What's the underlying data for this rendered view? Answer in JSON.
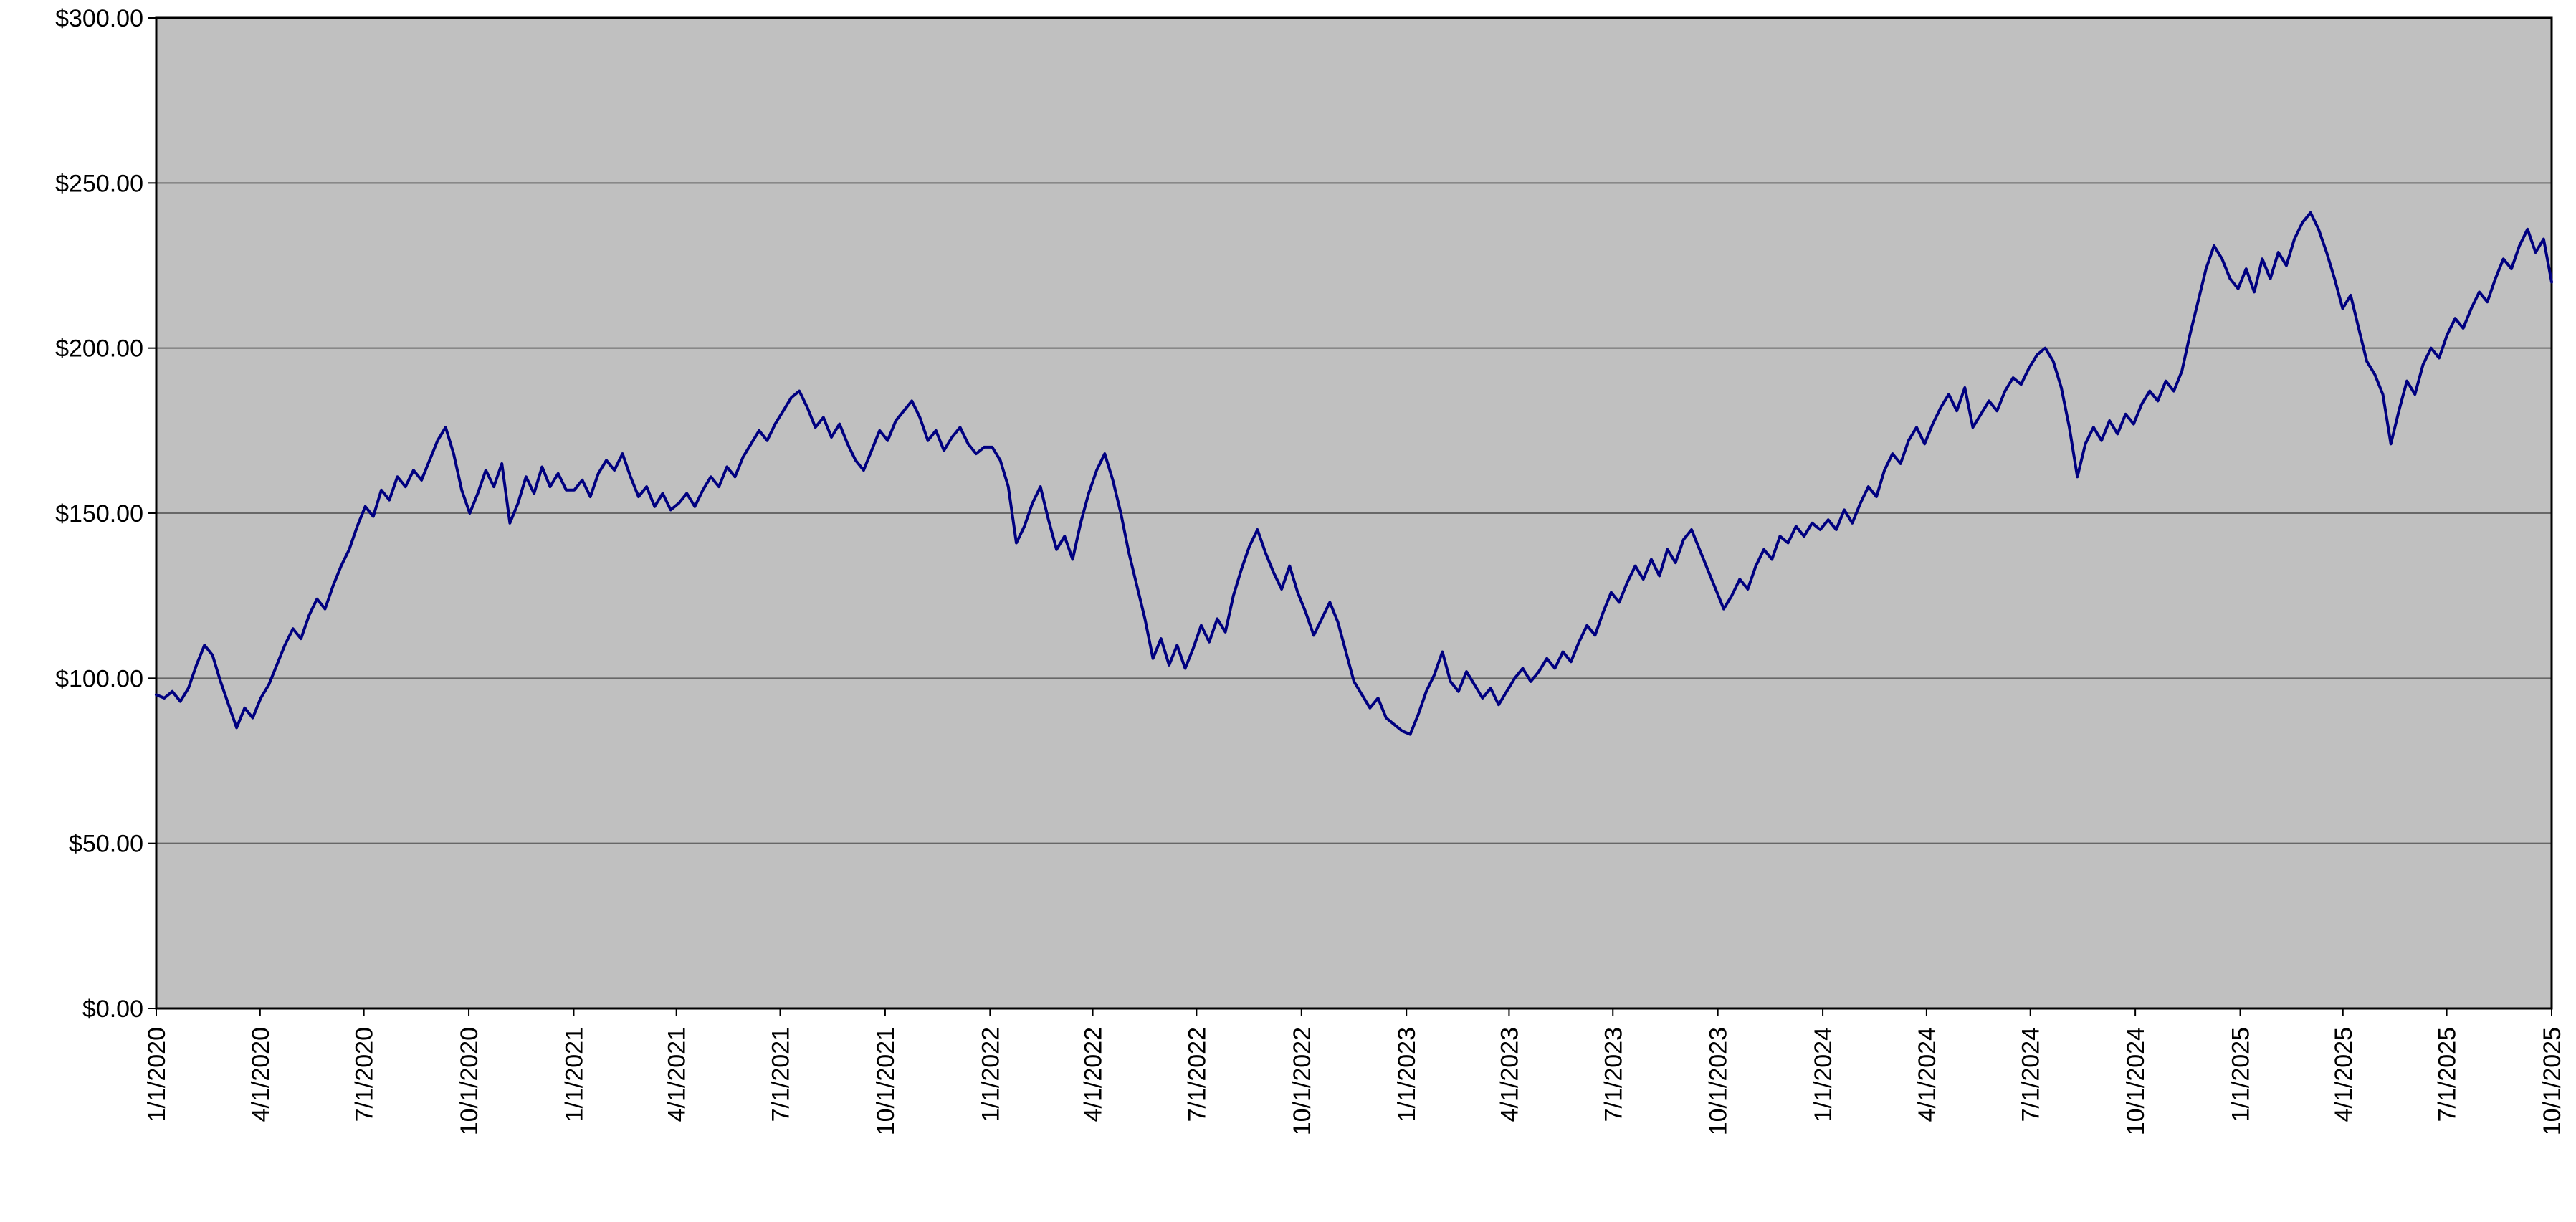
{
  "chart_data": {
    "type": "line",
    "title": "",
    "xlabel": "",
    "ylabel": "",
    "ylim": [
      0,
      300
    ],
    "grid": "horizontal",
    "legend": "none",
    "plot_bg": "#c0c0c0",
    "line_color": "#000080",
    "gridline_color": "#676767",
    "axis_color": "#000000",
    "y_ticks": [
      0,
      50,
      100,
      150,
      200,
      250,
      300
    ],
    "y_tick_labels": [
      "$0.00",
      "$50.00",
      "$100.00",
      "$150.00",
      "$200.00",
      "$250.00",
      "$300.00"
    ],
    "x_tick_labels": [
      "1/1/2020",
      "4/1/2020",
      "7/1/2020",
      "10/1/2020",
      "1/1/2021",
      "4/1/2021",
      "7/1/2021",
      "10/1/2021",
      "1/1/2022",
      "4/1/2022",
      "7/1/2022",
      "10/1/2022",
      "1/1/2023",
      "4/1/2023",
      "7/1/2023",
      "10/1/2023",
      "1/1/2024",
      "4/1/2024",
      "7/1/2024",
      "10/1/2024",
      "1/1/2025",
      "4/1/2025",
      "7/1/2025",
      "10/1/2025"
    ],
    "x_start_date": "1/1/2020",
    "x_end_date": "10/1/2025",
    "sampling": "weekly",
    "values": [
      95,
      94,
      96,
      93,
      97,
      104,
      110,
      107,
      99,
      92,
      85,
      91,
      88,
      94,
      98,
      104,
      110,
      115,
      112,
      119,
      124,
      121,
      128,
      134,
      139,
      146,
      152,
      149,
      157,
      154,
      161,
      158,
      163,
      160,
      166,
      172,
      176,
      168,
      157,
      150,
      156,
      163,
      158,
      165,
      147,
      153,
      161,
      156,
      164,
      158,
      162,
      157,
      157,
      160,
      155,
      162,
      166,
      163,
      168,
      161,
      155,
      158,
      152,
      156,
      151,
      153,
      156,
      152,
      157,
      161,
      158,
      164,
      161,
      167,
      171,
      175,
      172,
      177,
      181,
      185,
      187,
      182,
      176,
      179,
      173,
      177,
      171,
      166,
      163,
      169,
      175,
      172,
      178,
      181,
      184,
      179,
      172,
      175,
      169,
      173,
      176,
      171,
      168,
      170,
      170,
      166,
      158,
      141,
      146,
      153,
      158,
      148,
      139,
      143,
      136,
      147,
      156,
      163,
      168,
      160,
      150,
      138,
      128,
      118,
      106,
      112,
      104,
      110,
      103,
      109,
      116,
      111,
      118,
      114,
      125,
      133,
      140,
      145,
      138,
      132,
      127,
      134,
      126,
      120,
      113,
      118,
      123,
      117,
      108,
      99,
      95,
      91,
      94,
      88,
      86,
      84,
      83,
      89,
      96,
      101,
      108,
      99,
      96,
      102,
      98,
      94,
      97,
      92,
      96,
      100,
      103,
      99,
      102,
      106,
      103,
      108,
      105,
      111,
      116,
      113,
      120,
      126,
      123,
      129,
      134,
      130,
      136,
      131,
      139,
      135,
      142,
      145,
      139,
      133,
      127,
      121,
      125,
      130,
      127,
      134,
      139,
      136,
      143,
      141,
      146,
      143,
      147,
      145,
      148,
      145,
      151,
      147,
      153,
      158,
      155,
      163,
      168,
      165,
      172,
      176,
      171,
      177,
      182,
      186,
      181,
      188,
      176,
      180,
      184,
      181,
      187,
      191,
      189,
      194,
      198,
      200,
      196,
      188,
      176,
      161,
      171,
      176,
      172,
      178,
      174,
      180,
      177,
      183,
      187,
      184,
      190,
      187,
      193,
      204,
      214,
      224,
      231,
      227,
      221,
      218,
      224,
      217,
      227,
      221,
      229,
      225,
      233,
      238,
      241,
      236,
      229,
      221,
      212,
      216,
      206,
      196,
      192,
      186,
      171,
      181,
      190,
      186,
      195,
      200,
      197,
      204,
      209,
      206,
      212,
      217,
      214,
      221,
      227,
      224,
      231,
      236,
      229,
      233,
      220
    ]
  }
}
